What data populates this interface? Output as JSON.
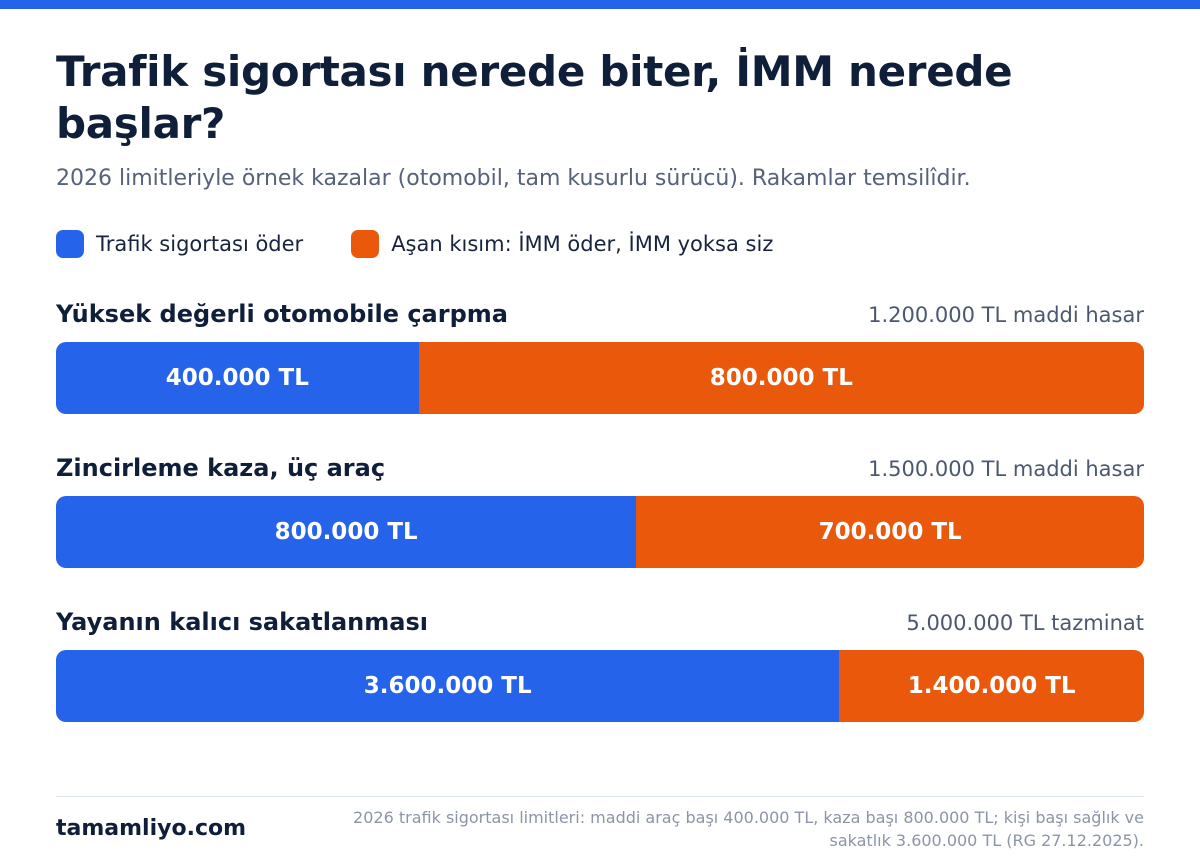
{
  "title": "Trafik sigortası nerede biter, İMM nerede başlar?",
  "subtitle": "2026 limitleriyle örnek kazalar (otomobil, tam kusurlu sürücü). Rakamlar temsilîdir.",
  "colors": {
    "accent": "#2563eb",
    "insurance": "#2563eb",
    "excess": "#ea580c"
  },
  "legend": {
    "insurance_label": "Trafik sigortası öder",
    "excess_label": "Aşan kısım: İMM öder, İMM yoksa siz"
  },
  "chart_data": {
    "type": "bar",
    "orientation": "horizontal",
    "stacked": true,
    "title": "Trafik sigortası nerede biter, İMM nerede başlar?",
    "categories": [
      "Yüksek değerli otomobile çarpma",
      "Zincirleme kaza, üç araç",
      "Yayanın kalıcı sakatlanması"
    ],
    "totals": [
      "1.200.000 TL maddi hasar",
      "1.500.000 TL maddi hasar",
      "5.000.000 TL tazminat"
    ],
    "series": [
      {
        "name": "Trafik sigortası öder",
        "values": [
          400000,
          800000,
          3600000
        ],
        "labels": [
          "400.000 TL",
          "800.000 TL",
          "3.600.000 TL"
        ]
      },
      {
        "name": "Aşan kısım: İMM öder, İMM yoksa siz",
        "values": [
          800000,
          700000,
          1400000
        ],
        "labels": [
          "800.000 TL",
          "700.000 TL",
          "1.400.000 TL"
        ]
      }
    ],
    "legend_position": "top-left",
    "grid": false
  },
  "footer": {
    "brand": "tamamliyo.com",
    "note": "2026 trafik sigortası limitleri: maddi araç başı 400.000 TL, kaza başı 800.000 TL; kişi başı sağlık ve sakatlık 3.600.000 TL (RG 27.12.2025)."
  }
}
